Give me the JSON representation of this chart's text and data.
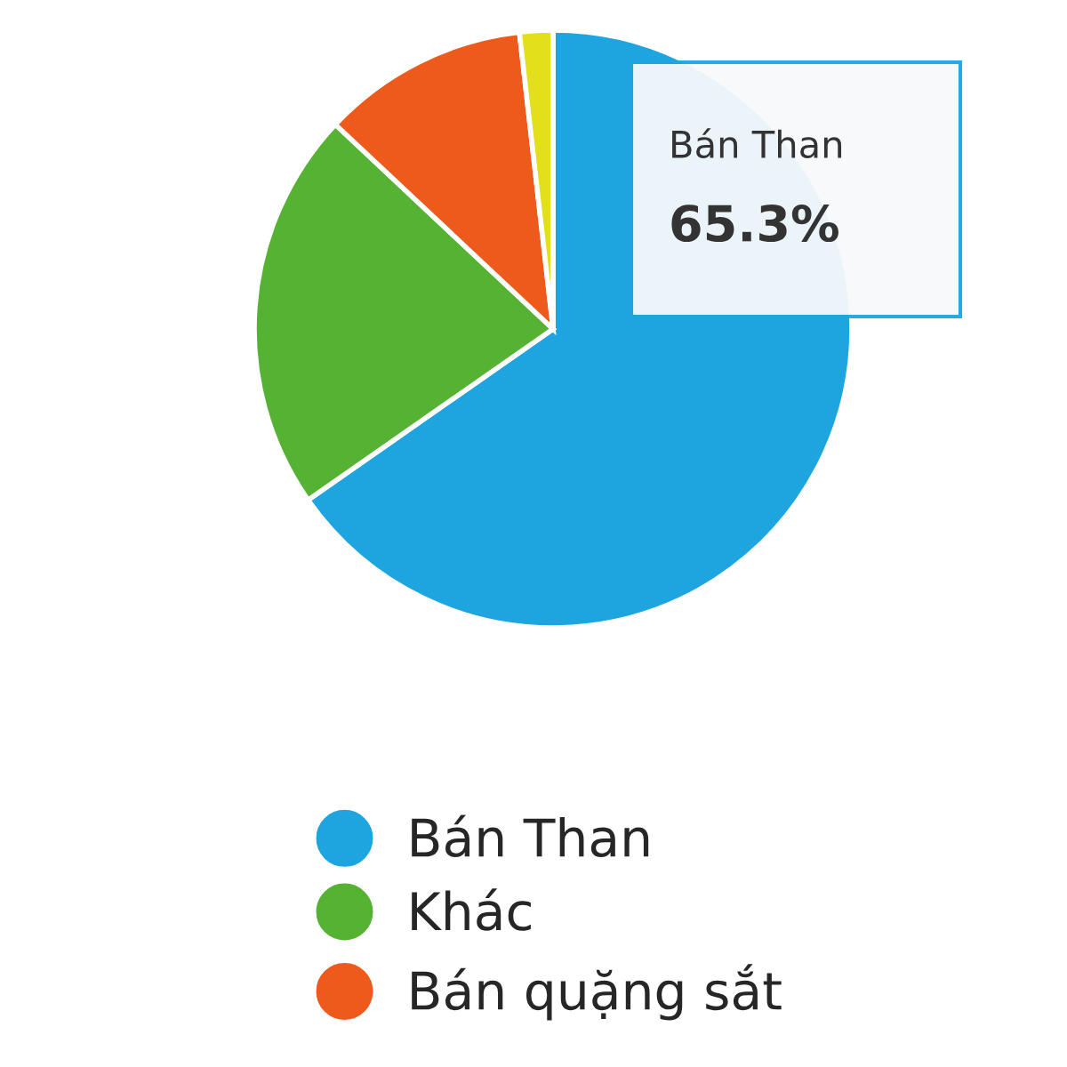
{
  "chart_data": {
    "type": "pie",
    "categories": [
      "Bán Than",
      "Khác",
      "Bán quặng sắt",
      null
    ],
    "values": [
      65.3,
      21.7,
      11.2,
      1.8
    ],
    "colors": [
      "#1ea5e0",
      "#55b232",
      "#ee5a1b",
      "#e3e01b"
    ],
    "legend": "bottom",
    "annotations": [
      "Bán Than",
      "65.3%"
    ]
  }
}
